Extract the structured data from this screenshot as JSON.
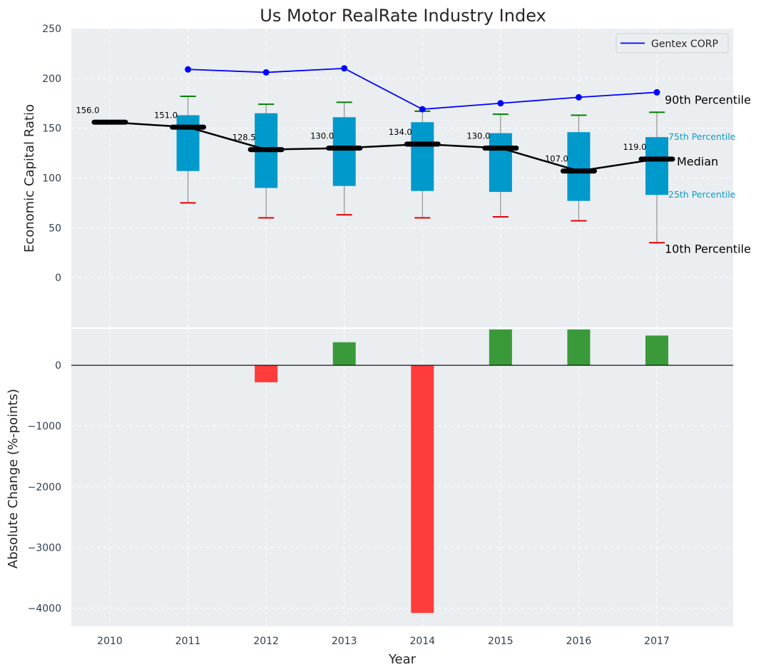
{
  "chart_data": {
    "title": "Us Motor RealRate Industry Index",
    "xlabel": "Year",
    "categories": [
      "2010",
      "2011",
      "2012",
      "2013",
      "2014",
      "2015",
      "2016",
      "2017"
    ],
    "grid": true,
    "legend": {
      "position": "top-right",
      "entries": [
        "Gentex CORP"
      ]
    },
    "top_panel": {
      "type": "box",
      "ylabel": "Economic Capital Ratio",
      "ylim": [
        -50,
        250
      ],
      "yticks": [
        "0",
        "50",
        "100",
        "150",
        "200",
        "250"
      ],
      "median": [
        156.0,
        151.0,
        128.5,
        130.0,
        134.0,
        130.0,
        107.0,
        119.0
      ],
      "median_labels": [
        "156.0",
        "151.0",
        "128.5",
        "130.0",
        "134.0",
        "130.0",
        "107.0",
        "119.0"
      ],
      "p25": [
        null,
        107,
        90,
        92,
        87,
        86,
        77,
        83
      ],
      "p75": [
        null,
        163,
        165,
        161,
        156,
        145,
        146,
        141
      ],
      "p10": [
        null,
        75,
        60,
        63,
        60,
        61,
        57,
        35
      ],
      "p90": [
        null,
        182,
        174,
        176,
        167,
        164,
        163,
        166
      ],
      "series": [
        {
          "name": "Gentex CORP",
          "color": "#0000ff",
          "values": [
            null,
            209,
            206,
            210,
            169,
            175,
            181,
            186
          ]
        }
      ],
      "annotations": {
        "p90": "90th Percentile",
        "p75": "75th Percentile",
        "median": "Median",
        "p25": "25th Percentile",
        "p10": "10th Percentile"
      }
    },
    "bottom_panel": {
      "type": "bar",
      "ylabel": "Absolute Change (%-points)",
      "ylim": [
        -4300,
        600
      ],
      "yticks": [
        "0",
        "−1000",
        "−2000",
        "−3000",
        "−4000"
      ],
      "values": [
        null,
        null,
        -280,
        380,
        -4080,
        590,
        590,
        490
      ]
    },
    "colors": {
      "box": "#0099cc",
      "median": "#000000",
      "whisker": "#808080",
      "p90_cap": "#008000",
      "p10_cap": "#e60000",
      "positive_bar": "#3a9a3a",
      "negative_bar": "#ff3c3c",
      "panel_bg": "#eaeef0"
    }
  }
}
